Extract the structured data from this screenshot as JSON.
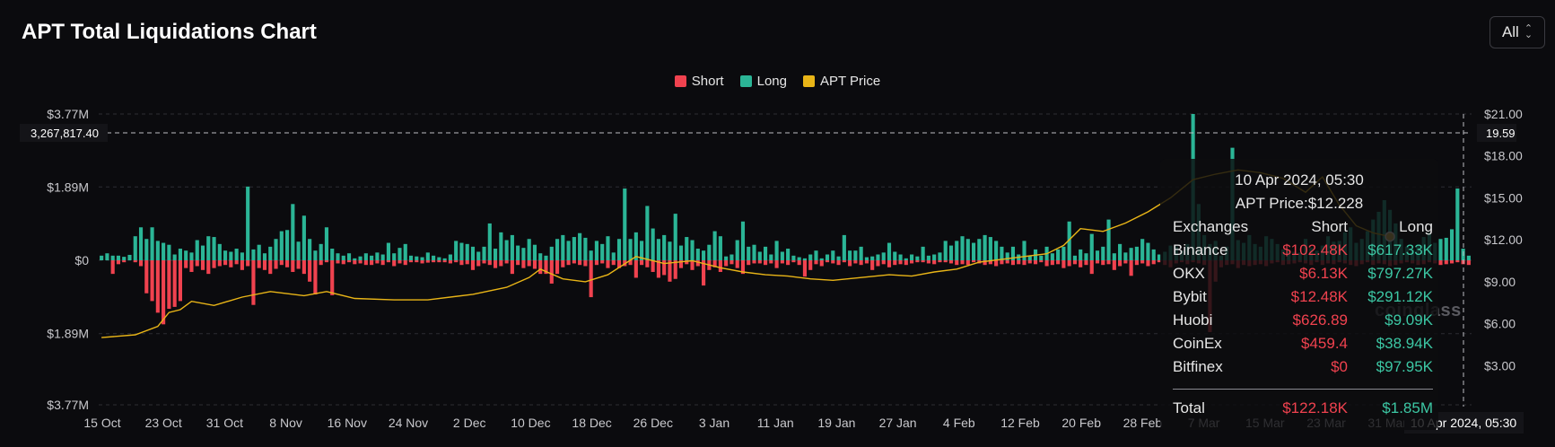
{
  "header": {
    "title": "APT Total Liquidations Chart",
    "range_value": "All"
  },
  "legend": [
    {
      "label": "Short",
      "color": "#f0424f"
    },
    {
      "label": "Long",
      "color": "#2bb596"
    },
    {
      "label": "APT Price",
      "color": "#e9b517"
    }
  ],
  "watermark": "coinglass",
  "crosshair": {
    "left_value": "3,267,817.40",
    "right_value": "19.59",
    "time_label": "10 Apr 2024, 05:30"
  },
  "tooltip": {
    "date": "10 Apr 2024, 05:30",
    "price": "APT Price:$12.228",
    "headers": [
      "Exchanges",
      "Short",
      "Long"
    ],
    "rows": [
      {
        "name": "Binance",
        "short": "$102.48K",
        "long": "$617.33K"
      },
      {
        "name": "OKX",
        "short": "$6.13K",
        "long": "$797.27K"
      },
      {
        "name": "Bybit",
        "short": "$12.48K",
        "long": "$291.12K"
      },
      {
        "name": "Huobi",
        "short": "$626.89",
        "long": "$9.09K"
      },
      {
        "name": "CoinEx",
        "short": "$459.4",
        "long": "$38.94K"
      },
      {
        "name": "Bitfinex",
        "short": "$0",
        "long": "$97.95K"
      }
    ],
    "total": {
      "name": "Total",
      "short": "$122.18K",
      "long": "$1.85M"
    }
  },
  "chart_data": {
    "type": "bar",
    "x_tick_labels": [
      "15 Oct",
      "23 Oct",
      "31 Oct",
      "8 Nov",
      "16 Nov",
      "24 Nov",
      "2 Dec",
      "10 Dec",
      "18 Dec",
      "26 Dec",
      "3 Jan",
      "11 Jan",
      "19 Jan",
      "27 Jan",
      "4 Feb",
      "12 Feb",
      "20 Feb",
      "28 Feb",
      "7 Mar",
      "15 Mar",
      "23 Mar",
      "31 Mar"
    ],
    "y_left_ticks": [
      "$3.77M",
      "$1.89M",
      "$0",
      "$1.89M",
      "$3.77M"
    ],
    "y_left_range": [
      -3.77,
      3.77
    ],
    "y_left_unit": "M USD",
    "y_right_ticks": [
      "$21.00",
      "$18.00",
      "$15.00",
      "$12.00",
      "$9.00",
      "$6.00",
      "$3.00"
    ],
    "y_right_range": [
      0,
      21
    ],
    "series": [
      {
        "name": "Long",
        "values": [
          0.12,
          0.18,
          0.12,
          0.12,
          0.09,
          0.14,
          0.62,
          0.85,
          0.55,
          0.85,
          0.5,
          0.45,
          0.4,
          0.15,
          0.3,
          0.25,
          0.2,
          0.52,
          0.38,
          0.62,
          0.6,
          0.42,
          0.25,
          0.22,
          0.3,
          0.2,
          1.9,
          0.28,
          0.4,
          0.18,
          0.35,
          0.55,
          0.75,
          0.78,
          1.45,
          0.48,
          1.15,
          0.55,
          0.25,
          0.42,
          0.85,
          0.3,
          0.18,
          0.12,
          0.18,
          0.05,
          0.1,
          0.18,
          0.12,
          0.2,
          0.15,
          0.45,
          0.18,
          0.32,
          0.42,
          0.12,
          0.1,
          0.08,
          0.2,
          0.12,
          0.08,
          0.05,
          0.15,
          0.5,
          0.45,
          0.42,
          0.35,
          0.22,
          0.35,
          0.95,
          0.3,
          0.72,
          0.52,
          0.65,
          0.38,
          0.32,
          0.55,
          0.4,
          0.18,
          0.12,
          0.35,
          0.55,
          0.65,
          0.5,
          0.6,
          0.7,
          0.58,
          0.25,
          0.5,
          0.42,
          0.62,
          0.2,
          0.55,
          1.85,
          0.55,
          0.72,
          0.5,
          1.4,
          0.82,
          0.55,
          0.65,
          0.48,
          1.2,
          0.38,
          0.6,
          0.52,
          0.3,
          0.25,
          0.4,
          0.75,
          0.62,
          0.1,
          0.15,
          0.52,
          1.0,
          0.35,
          0.4,
          0.22,
          0.35,
          0.15,
          0.5,
          0.22,
          0.3,
          0.12,
          0.08,
          0.05,
          0.15,
          0.25,
          0.05,
          0.15,
          0.25,
          0.1,
          0.65,
          0.25,
          0.25,
          0.35,
          0.08,
          0.1,
          0.15,
          0.2,
          0.45,
          0.22,
          0.15,
          0.05,
          0.15,
          0.1,
          0.35,
          0.12,
          0.15,
          0.2,
          0.5,
          0.38,
          0.5,
          0.62,
          0.55,
          0.45,
          0.55,
          0.65,
          0.6,
          0.5,
          0.35,
          0.2,
          0.35,
          0.15,
          0.5,
          0.12,
          0.28,
          0.12,
          0.35,
          0.18,
          0.28,
          0.35,
          1.0,
          0.12,
          0.28,
          0.18,
          0.68,
          0.25,
          0.35,
          1.05,
          0.18,
          0.42,
          0.2,
          0.32,
          0.35,
          0.55,
          0.45,
          0.28,
          0.15,
          0.22,
          0.38,
          0.35,
          0.25,
          0.42,
          3.77,
          1.45,
          0.65,
          0.42,
          0.5,
          0.12,
          0.35,
          2.9,
          0.52,
          0.45,
          0.65,
          0.42,
          0.35,
          0.62,
          0.55,
          0.42,
          0.28,
          0.25,
          0.22,
          0.2,
          0.55,
          0.32,
          0.25,
          0.38,
          0.62,
          0.48,
          0.5,
          0.72,
          0.85,
          0.45,
          0.55,
          0.75,
          1.05,
          1.25,
          1.55,
          1.3,
          0.95,
          0.55,
          0.35,
          0.28,
          0.4,
          0.6,
          0.72,
          0.45,
          0.55,
          0.58,
          0.8,
          1.85,
          0.3,
          0.12
        ]
      },
      {
        "name": "Short",
        "values": [
          0,
          0,
          -0.35,
          -0.1,
          -0.05,
          0,
          -0.05,
          -0.15,
          -0.85,
          -1.05,
          -1.35,
          -1.65,
          -1.25,
          -1.2,
          -1.05,
          -0.2,
          -0.3,
          -0.15,
          -0.25,
          -0.35,
          -0.2,
          -0.15,
          -0.12,
          -0.18,
          -0.1,
          -0.25,
          -0.15,
          -1.15,
          -0.2,
          -0.25,
          -0.35,
          -0.22,
          -0.12,
          -0.18,
          -0.3,
          -0.22,
          -0.35,
          -0.55,
          -0.88,
          -0.12,
          -0.05,
          -0.9,
          -0.08,
          -0.1,
          -0.05,
          -0.1,
          -0.08,
          -0.12,
          -0.12,
          -0.08,
          -0.12,
          -0.05,
          -0.15,
          -0.08,
          -0.12,
          -0.05,
          -0.05,
          -0.08,
          -0.06,
          -0.05,
          -0.05,
          -0.05,
          -0.08,
          -0.05,
          -0.12,
          -0.1,
          -0.25,
          -0.15,
          -0.08,
          -0.12,
          -0.2,
          -0.15,
          -0.08,
          -0.35,
          -0.12,
          -0.2,
          -0.15,
          -0.22,
          -0.35,
          -0.35,
          -0.6,
          -0.35,
          -0.18,
          -0.12,
          -0.08,
          -0.12,
          -0.15,
          -0.95,
          -0.12,
          -0.08,
          -0.2,
          -0.12,
          -0.2,
          -0.15,
          -0.12,
          -0.45,
          -0.12,
          -0.18,
          -0.3,
          -0.45,
          -0.38,
          -0.55,
          -0.48,
          -0.2,
          -0.1,
          -0.25,
          -0.15,
          -0.65,
          -0.25,
          -0.18,
          -0.3,
          -0.15,
          -0.1,
          -0.2,
          -0.35,
          -0.12,
          -0.08,
          -0.08,
          -0.12,
          -0.08,
          -0.2,
          -0.08,
          -0.12,
          -0.05,
          -0.12,
          -0.42,
          -0.25,
          -0.1,
          -0.15,
          -0.05,
          -0.08,
          -0.12,
          -0.05,
          -0.15,
          -0.08,
          -0.12,
          -0.08,
          -0.25,
          -0.15,
          -0.1,
          -0.18,
          -0.12,
          -0.1,
          -0.12,
          -0.08,
          -0.05,
          -0.05,
          -0.08,
          -0.1,
          -0.05,
          -0.05,
          -0.08,
          -0.12,
          -0.1,
          -0.12,
          -0.05,
          -0.08,
          -0.12,
          -0.1,
          -0.15,
          -0.1,
          -0.08,
          -0.12,
          -0.1,
          -0.12,
          -0.08,
          -0.1,
          -0.05,
          -0.15,
          -0.12,
          -0.1,
          -0.2,
          -0.15,
          -0.1,
          -0.18,
          -0.12,
          -0.35,
          -0.08,
          -0.12,
          -0.1,
          -0.25,
          -0.15,
          -0.08,
          -0.4,
          -0.12,
          -0.08,
          -0.15,
          -0.1,
          -0.05,
          -0.12,
          -0.18,
          -0.08,
          -0.05,
          -0.1,
          -0.05,
          -0.08,
          -0.12,
          -1.85,
          -0.55,
          -0.18,
          -0.12,
          -0.1,
          -0.2,
          -0.12,
          -0.15,
          -0.12,
          -0.1,
          -0.15,
          -0.08,
          -0.05,
          -0.12,
          -0.1,
          -0.08,
          -0.05,
          -0.08,
          -0.12,
          -0.05,
          -0.12,
          -0.08,
          -0.1,
          -0.05,
          -0.08,
          -0.12,
          -0.15,
          -0.1,
          -0.05,
          -0.12,
          -0.08,
          -0.1,
          -0.15,
          -0.12,
          -0.08,
          -0.05,
          -0.08,
          -0.12,
          -0.1,
          -0.05,
          -0.08,
          -0.12,
          -0.1,
          -0.08,
          -0.05,
          -0.1,
          -0.12,
          -0.12,
          -0.08,
          -0.05
        ]
      },
      {
        "name": "APT Price",
        "type": "line",
        "points": [
          [
            0,
            5.0
          ],
          [
            6,
            5.2
          ],
          [
            10,
            5.8
          ],
          [
            12,
            6.8
          ],
          [
            14,
            7.0
          ],
          [
            16,
            7.6
          ],
          [
            20,
            7.3
          ],
          [
            25,
            7.9
          ],
          [
            30,
            8.3
          ],
          [
            36,
            8.0
          ],
          [
            40,
            8.3
          ],
          [
            45,
            7.8
          ],
          [
            52,
            7.7
          ],
          [
            58,
            7.7
          ],
          [
            66,
            8.1
          ],
          [
            72,
            8.6
          ],
          [
            76,
            9.3
          ],
          [
            78,
            9.9
          ],
          [
            82,
            9.2
          ],
          [
            86,
            9.0
          ],
          [
            90,
            9.5
          ],
          [
            95,
            10.8
          ],
          [
            100,
            10.3
          ],
          [
            105,
            10.5
          ],
          [
            110,
            10.0
          ],
          [
            114,
            9.7
          ],
          [
            118,
            9.5
          ],
          [
            122,
            9.4
          ],
          [
            126,
            9.2
          ],
          [
            130,
            9.1
          ],
          [
            135,
            9.3
          ],
          [
            140,
            9.5
          ],
          [
            144,
            9.4
          ],
          [
            148,
            9.7
          ],
          [
            152,
            9.9
          ],
          [
            156,
            10.4
          ],
          [
            160,
            10.6
          ],
          [
            164,
            10.8
          ],
          [
            168,
            11.0
          ],
          [
            171,
            11.6
          ],
          [
            174,
            12.8
          ],
          [
            178,
            12.6
          ],
          [
            182,
            13.2
          ],
          [
            186,
            14.0
          ],
          [
            190,
            15.0
          ],
          [
            194,
            16.3
          ],
          [
            198,
            16.7
          ],
          [
            202,
            17.0
          ],
          [
            206,
            16.8
          ],
          [
            210,
            16.4
          ],
          [
            214,
            15.4
          ],
          [
            217,
            16.5
          ],
          [
            220,
            14.5
          ],
          [
            223,
            13.0
          ],
          [
            226,
            12.5
          ],
          [
            229,
            12.228
          ]
        ]
      }
    ]
  }
}
